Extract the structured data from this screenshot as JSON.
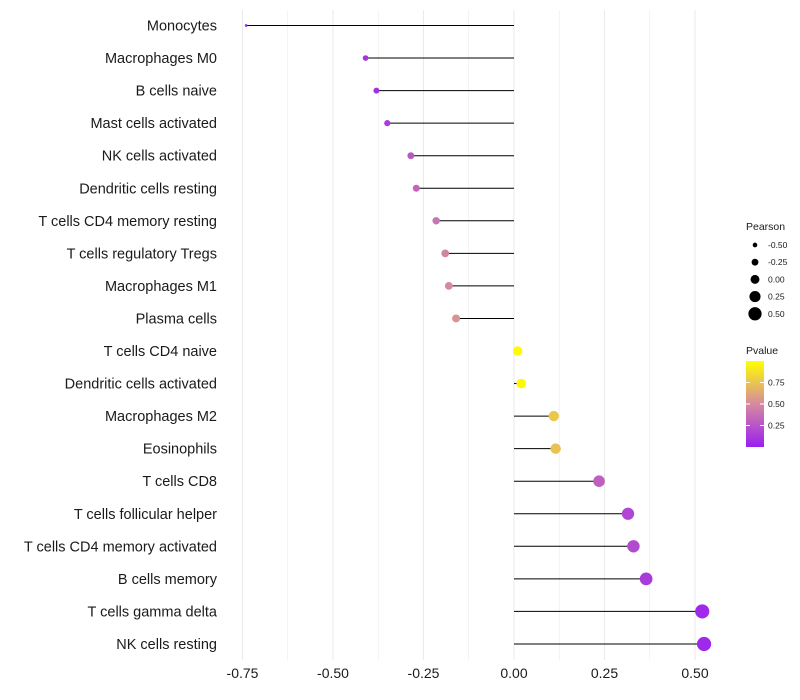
{
  "chart_data": {
    "type": "lollipop",
    "categories": [
      "Monocytes",
      "Macrophages M0",
      "B cells naive",
      "Mast cells activated",
      "NK cells activated",
      "Dendritic cells resting",
      "T cells CD4 memory resting",
      "T cells regulatory  Tregs ",
      "Macrophages M1",
      "Plasma cells",
      "T cells CD4 naive",
      "Dendritic cells activated",
      "Macrophages M2",
      "Eosinophils",
      "T cells CD8",
      "T cells follicular helper",
      "T cells CD4 memory activated",
      "B cells memory",
      "T cells gamma delta",
      "NK cells resting"
    ],
    "pearson": [
      -0.74,
      -0.41,
      -0.38,
      -0.35,
      -0.285,
      -0.27,
      -0.215,
      -0.19,
      -0.18,
      -0.16,
      0.01,
      0.02,
      0.11,
      0.115,
      0.235,
      0.315,
      0.33,
      0.365,
      0.52,
      0.525
    ],
    "pvalue": [
      0.02,
      0.1,
      0.08,
      0.14,
      0.26,
      0.33,
      0.4,
      0.47,
      0.5,
      0.54,
      0.98,
      0.97,
      0.76,
      0.74,
      0.3,
      0.18,
      0.2,
      0.13,
      0.04,
      0.04
    ],
    "xlim": [
      -0.8,
      0.57
    ],
    "x_ticks": [
      -0.75,
      -0.5,
      -0.25,
      0.0,
      0.25,
      0.5
    ],
    "x_tick_labels": [
      "-0.75",
      "-0.50",
      "-0.25",
      "0.00",
      "0.25",
      "0.50"
    ],
    "title": "",
    "xlabel": "",
    "ylabel": "",
    "grid": "vertical",
    "legend_position": "right",
    "legend": {
      "size_title": "Pearson",
      "size_values": [
        -0.5,
        -0.25,
        0.0,
        0.25,
        0.5
      ],
      "size_labels": [
        "-0.50",
        "-0.25",
        "0.00",
        "0.25",
        "0.50"
      ],
      "color_title": "Pvalue",
      "color_values": [
        0.25,
        0.5,
        0.75
      ],
      "color_labels": [
        "0.25",
        "0.50",
        "0.75"
      ],
      "color_range": [
        0.0,
        1.0
      ]
    },
    "colors": {
      "low": "#9a1ff0",
      "mid": "#d68a9f",
      "high": "#ffff00",
      "stem": "#000000",
      "grid": "#ebebeb"
    }
  }
}
